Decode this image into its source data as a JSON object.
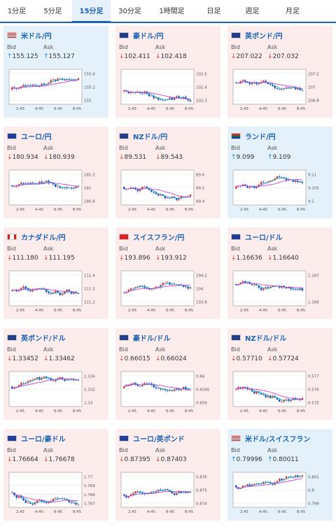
{
  "tabs": [
    "1分足",
    "5分足",
    "15分足",
    "30分足",
    "1時間足",
    "日足",
    "週足",
    "月足"
  ],
  "active_tab": 2,
  "labels": {
    "bid": "Bid",
    "ask": "Ask"
  },
  "colors": {
    "rose": "#fcecec",
    "sky": "#e4f1fb",
    "up": "#1a7fd0",
    "down": "#d23a3a",
    "accent": "#1a62b6"
  },
  "cards": [
    {
      "pair": "米ドル/円",
      "bid": "155.125",
      "ask": "155.127",
      "dir": "up",
      "bg": "sky",
      "flag": "us-jp",
      "yticks": [
        "155.4",
        "155.2",
        "155"
      ],
      "xticks": [
        "2:45",
        "4:45",
        "6:45",
        "8:45"
      ]
    },
    {
      "pair": "豪ドル/円",
      "bid": "102.411",
      "ask": "102.418",
      "dir": "down",
      "bg": "rose",
      "flag": "au-jp",
      "yticks": [
        "102.5",
        "102.4",
        "102.3"
      ],
      "xticks": [
        "2:45",
        "4:45",
        "6:45",
        "8:45"
      ]
    },
    {
      "pair": "英ポンド/円",
      "bid": "207.022",
      "ask": "207.032",
      "dir": "down",
      "bg": "rose",
      "flag": "gb-jp",
      "yticks": [
        "207.2",
        "207",
        "206.8"
      ],
      "xticks": [
        "2:45",
        "4:45",
        "6:45",
        "8:45"
      ]
    },
    {
      "pair": "ユーロ/円",
      "bid": "180.934",
      "ask": "180.939",
      "dir": "down",
      "bg": "rose",
      "flag": "eu-jp",
      "yticks": [
        "181.2",
        "181",
        "180.8"
      ],
      "xticks": [
        "2:45",
        "4:45",
        "6:45",
        "8:45"
      ]
    },
    {
      "pair": "NZドル/円",
      "bid": "89.531",
      "ask": "89.543",
      "dir": "down",
      "bg": "rose",
      "flag": "nz-jp",
      "yticks": [
        "89.6",
        "89.5",
        "89.4"
      ],
      "xticks": [
        "2:45",
        "4:45",
        "6:45",
        "8:45"
      ]
    },
    {
      "pair": "ランド/円",
      "bid": "9.099",
      "ask": "9.109",
      "dir": "up",
      "bg": "sky",
      "flag": "za-jp",
      "yticks": [
        "9.11",
        "9.105",
        "9.1"
      ],
      "xticks": [
        "2:45",
        "4:45",
        "6:45",
        "8:45"
      ]
    },
    {
      "pair": "カナダドル/円",
      "bid": "111.180",
      "ask": "111.195",
      "dir": "down",
      "bg": "rose",
      "flag": "ca-jp",
      "yticks": [
        "111.4",
        "111.3",
        "111.2"
      ],
      "xticks": [
        "2:45",
        "4:45",
        "6:45",
        "8:45"
      ]
    },
    {
      "pair": "スイスフラン/円",
      "bid": "193.896",
      "ask": "193.912",
      "dir": "down",
      "bg": "rose",
      "flag": "ch-jp",
      "yticks": [
        "194.2",
        "194",
        "193.8"
      ],
      "xticks": [
        "2:45",
        "4:45",
        "6:45",
        "8:45"
      ]
    },
    {
      "pair": "ユーロ/ドル",
      "bid": "1.16636",
      "ask": "1.16640",
      "dir": "down",
      "bg": "rose",
      "flag": "eu-us",
      "yticks": [
        "1.167",
        "1.166"
      ],
      "xticks": [
        "2:45",
        "4:45",
        "6:45",
        "8:45"
      ]
    },
    {
      "pair": "英ポンド/ドル",
      "bid": "1.33452",
      "ask": "1.33462",
      "dir": "down",
      "bg": "rose",
      "flag": "gb-us",
      "yticks": [
        "1.334",
        "1.332",
        "1.33"
      ],
      "xticks": [
        "2:45",
        "4:45",
        "6:45",
        "8:45"
      ]
    },
    {
      "pair": "豪ドル/ドル",
      "bid": "0.66015",
      "ask": "0.66024",
      "dir": "down",
      "bg": "rose",
      "flag": "au-us",
      "yticks": [
        "0.66",
        "0.6595",
        "0.659"
      ],
      "xticks": [
        "2:45",
        "4:45",
        "6:45",
        "8:45"
      ]
    },
    {
      "pair": "NZドル/ドル",
      "bid": "0.57710",
      "ask": "0.57724",
      "dir": "down",
      "bg": "rose",
      "flag": "nz-us",
      "yticks": [
        "0.577",
        "0.576",
        "0.575"
      ],
      "xticks": [
        "2:45",
        "4:45",
        "6:45",
        "8:45"
      ]
    },
    {
      "pair": "ユーロ/豪ドル",
      "bid": "1.76664",
      "ask": "1.76678",
      "dir": "down",
      "bg": "rose",
      "flag": "eu-au",
      "yticks": [
        "1.77",
        "1.769",
        "1.768",
        "1.767"
      ],
      "xticks": [
        "2:45",
        "4:45",
        "6:45",
        "8:45"
      ]
    },
    {
      "pair": "ユーロ/英ポンド",
      "bid": "0.87395",
      "ask": "0.87403",
      "dir": "down",
      "bg": "rose",
      "flag": "eu-gb",
      "yticks": [
        "0.876",
        "0.875",
        "0.874"
      ],
      "xticks": [
        "2:45",
        "4:45",
        "6:45",
        "8:45"
      ]
    },
    {
      "pair": "米ドル/スイスフラン",
      "bid": "0.79996",
      "ask": "0.80011",
      "dir": "up",
      "bg": "sky",
      "flag": "us-ch",
      "yticks": [
        "0.801",
        "0.8",
        "0.799"
      ],
      "xticks": [
        "2:45",
        "4:45",
        "6:45",
        "8:45"
      ]
    }
  ]
}
